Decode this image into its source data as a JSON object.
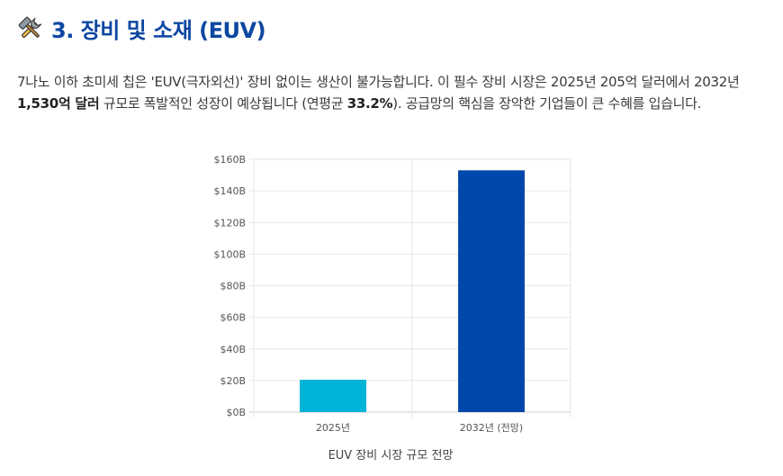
{
  "section": {
    "title": "3. 장비 및 소재 (EUV)",
    "icon": "hammer-and-wrench-icon"
  },
  "paragraph": {
    "part1": "7나노 이하 초미세 칩은 'EUV(극자외선)' 장비 없이는 생산이 불가능합니다. 이 필수 장비 시장은 2025년 205억 달러에서 2032년 ",
    "bold1": "1,530억 달러",
    "part2": " 규모로 폭발적인 성장이 예상됩니다 (연평균 ",
    "bold2": "33.2%",
    "part3": "). 공급망의 핵심을 장악한 기업들이 큰 수혜를 입습니다."
  },
  "chart_data": {
    "type": "bar",
    "categories": [
      "2025년",
      "2032년 (전망)"
    ],
    "values": [
      20.5,
      153
    ],
    "colors": [
      "#00b4d8",
      "#0047ab"
    ],
    "xlabel": "EUV 장비 시장 규모 전망",
    "ylabel": "",
    "ylim": [
      0,
      160
    ],
    "yticks": [
      {
        "value": 0,
        "label": "$0B"
      },
      {
        "value": 20,
        "label": "$20B"
      },
      {
        "value": 40,
        "label": "$40B"
      },
      {
        "value": 60,
        "label": "$60B"
      },
      {
        "value": 80,
        "label": "$80B"
      },
      {
        "value": 100,
        "label": "$100B"
      },
      {
        "value": 120,
        "label": "$120B"
      },
      {
        "value": 140,
        "label": "$140B"
      },
      {
        "value": 160,
        "label": "$160B"
      }
    ],
    "grid": true,
    "legend": "none"
  }
}
